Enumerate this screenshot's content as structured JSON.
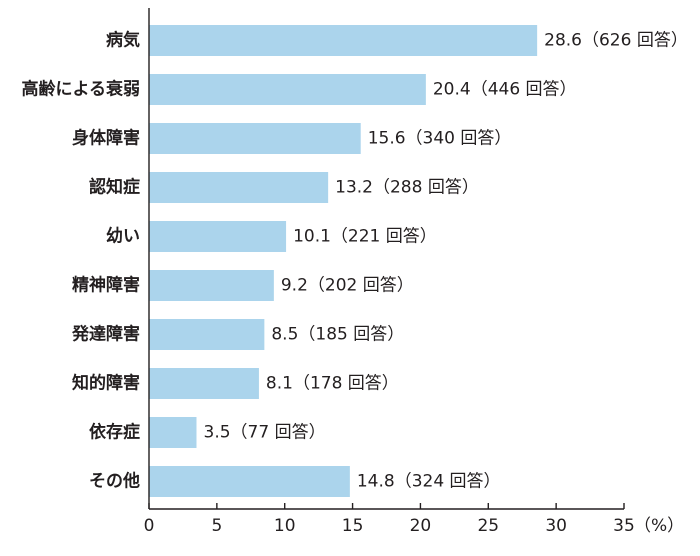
{
  "chart_data": {
    "type": "bar",
    "orientation": "horizontal",
    "categories": [
      "病気",
      "高齢による衰弱",
      "身体障害",
      "認知症",
      "幼い",
      "精神障害",
      "発達障害",
      "知的障害",
      "依存症",
      "その他"
    ],
    "values": [
      28.6,
      20.4,
      15.6,
      13.2,
      10.1,
      9.2,
      8.5,
      8.1,
      3.5,
      14.8
    ],
    "data_labels": [
      "28.6（626 回答）",
      "20.4（446 回答）",
      "15.6（340 回答）",
      "13.2（288 回答）",
      "10.1（221 回答）",
      "9.2（202 回答）",
      "8.5（185 回答）",
      "8.1（178 回答）",
      "3.5（77 回答）",
      "14.8（324 回答）"
    ],
    "x_ticks": [
      0,
      5,
      10,
      15,
      20,
      25,
      30,
      35
    ],
    "x_tick_labels": [
      "0",
      "5",
      "10",
      "15",
      "20",
      "25",
      "30",
      "35"
    ],
    "x_unit": "（%）",
    "xlim": [
      0,
      35
    ],
    "grid": false,
    "colors": {
      "bar": "#abd4ec",
      "axis": "#231f20",
      "text": "#231f20"
    }
  }
}
